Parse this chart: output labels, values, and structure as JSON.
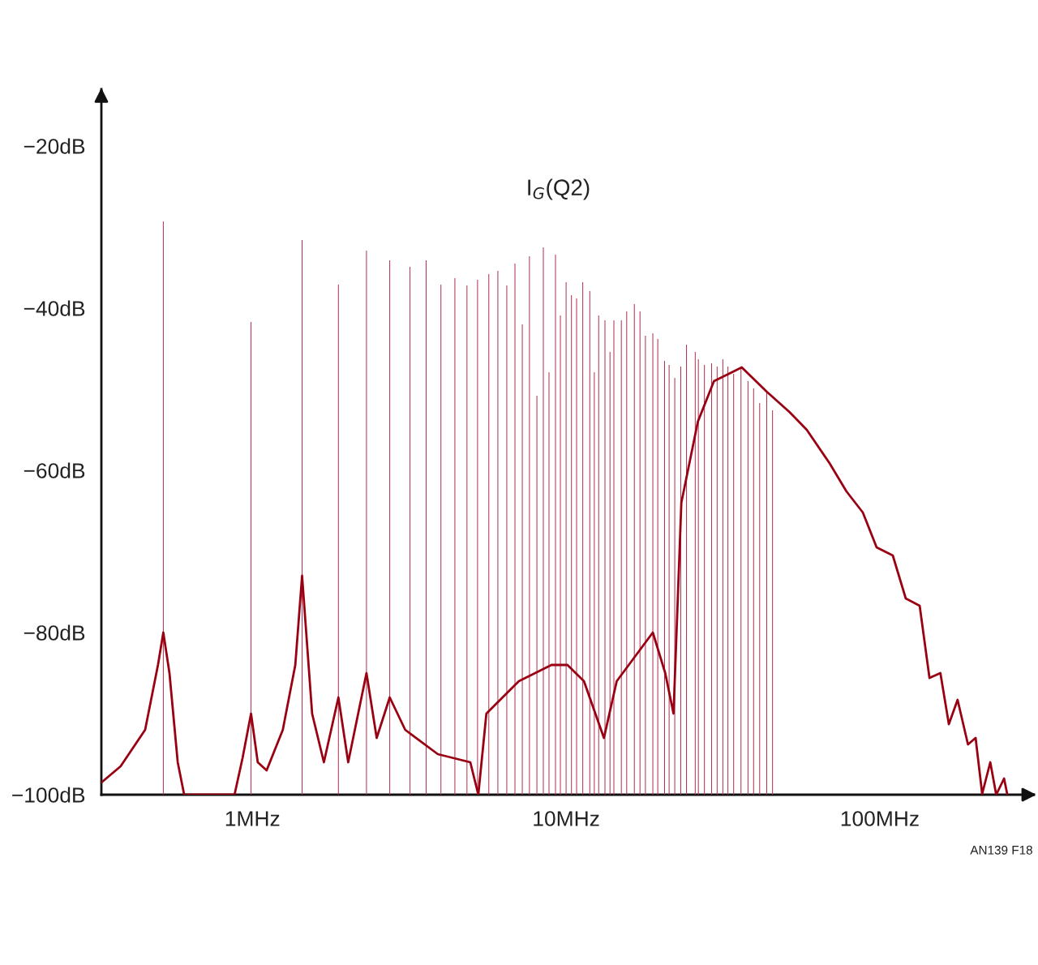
{
  "chart_data": {
    "type": "line",
    "line_style": "solid",
    "marker": "none",
    "title": "I$_{G}$(Q2)",
    "log": "x",
    "grid": false,
    "legend": false,
    "xlim": [
      0.33,
      310
    ],
    "ylim": [
      -100,
      -13
    ],
    "xticks": [
      {
        "value": 1,
        "label": "1MHz"
      },
      {
        "value": 10,
        "label": "10MHz"
      },
      {
        "value": 100,
        "label": "100MHz"
      }
    ],
    "yticks": [
      {
        "value": -20,
        "label": "−20dB"
      },
      {
        "value": -40,
        "label": "−40dB"
      },
      {
        "value": -60,
        "label": "−60dB"
      },
      {
        "value": -80,
        "label": "−80dB"
      },
      {
        "value": -100,
        "label": "−100dB"
      }
    ],
    "annotations": [
      "AN139 F18"
    ],
    "series": [
      {
        "color": "#990012",
        "x": [
          0.33,
          0.38,
          0.455,
          0.5,
          0.52,
          0.544,
          0.578,
          0.606,
          0.877,
          0.93,
          0.99,
          1.04,
          1.11,
          1.25,
          1.37,
          1.44,
          1.55,
          1.69,
          1.88,
          2.02,
          2.31,
          2.49,
          2.74,
          3.07,
          3.9,
          4.95,
          5.25,
          5.57,
          7.07,
          8.98,
          10.1,
          11.4,
          13.2,
          14.5,
          17.3,
          18.9,
          20.7,
          22.0,
          23.3,
          26.3,
          29.6,
          33.4,
          36.3,
          43.6,
          51.5,
          58.5,
          69.1,
          78.3,
          88.3,
          97.7,
          110,
          121,
          134,
          144,
          156,
          166,
          177,
          191,
          202,
          212,
          225,
          235,
          249,
          255
        ],
        "values": [
          -98.5,
          -96.5,
          -92,
          -84,
          -80,
          -85,
          -96,
          -100,
          -100,
          -95.5,
          -90,
          -96,
          -97,
          -92,
          -84,
          -73,
          -90,
          -96,
          -88,
          -96,
          -85,
          -93,
          -88,
          -92,
          -95,
          -96,
          -100,
          -90,
          -86,
          -84,
          -84,
          -86,
          -93,
          -86,
          -82,
          -80,
          -85,
          -90,
          -64,
          -54,
          -49,
          -48,
          -47.3,
          -50.3,
          -52.8,
          -55,
          -59.1,
          -62.6,
          -65.2,
          -69.5,
          -70.5,
          -75.8,
          -76.7,
          -85.6,
          -85,
          -91.3,
          -88.3,
          -93.8,
          -93,
          -99.9,
          -96,
          -100,
          -98,
          -100
        ]
      },
      {
        "type": "bar",
        "color": "#b0304f",
        "x": [
          0.52,
          0.99,
          1.44,
          1.88,
          2.31,
          2.74,
          3.18,
          3.58,
          3.99,
          4.42,
          4.83,
          5.22,
          5.67,
          6.06,
          6.47,
          6.87,
          7.25,
          7.64,
          8.07,
          8.46,
          8.82,
          9.25,
          9.59,
          10.0,
          10.4,
          10.8,
          11.3,
          11.9,
          12.3,
          12.7,
          13.3,
          13.8,
          14.2,
          15.0,
          15.6,
          16.5,
          17.2,
          17.9,
          18.9,
          19.6,
          20.6,
          21.3,
          22.2,
          23.2,
          24.2,
          25.8,
          26.4,
          27.6,
          29.1,
          30.3,
          31.6,
          32.8,
          34.2,
          36.1,
          38.0,
          39.6,
          41.4,
          43.6,
          45.5
        ],
        "base": [
          -100,
          -100,
          -100,
          -100,
          -100,
          -100,
          -100,
          -100,
          -100,
          -100,
          -100,
          -100,
          -100,
          -100,
          -100,
          -100,
          -100,
          -100,
          -100,
          -100,
          -100,
          -100,
          -100,
          -100,
          -100,
          -100,
          -100,
          -100,
          -100,
          -100,
          -100,
          -100,
          -100,
          -100,
          -100,
          -100,
          -100,
          -100,
          -100,
          -100,
          -100,
          -100,
          -100,
          -100,
          -100,
          -100,
          -100,
          -100,
          -100,
          -100,
          -100,
          -100,
          -100,
          -100,
          -100,
          -100,
          -100,
          -100,
          -100
        ],
        "values": [
          70.7,
          58.3,
          68.4,
          62.9,
          67.1,
          65.9,
          65.1,
          65.9,
          62.9,
          63.7,
          62.8,
          63.5,
          64.2,
          64.6,
          62.8,
          65.5,
          58,
          66.4,
          49.2,
          67.5,
          52.1,
          66.6,
          59.1,
          63.2,
          61.6,
          61.2,
          63.2,
          62.1,
          52.1,
          59.1,
          58.5,
          54.6,
          58.5,
          58.5,
          59.6,
          60.5,
          59.6,
          56.6,
          56.9,
          56.2,
          53.5,
          53,
          51.4,
          52.8,
          55.5,
          54.6,
          53.7,
          53,
          53.2,
          52.8,
          53.7,
          52.8,
          51.9,
          52.8,
          51,
          50.1,
          48.3,
          49.6,
          47.4
        ]
      }
    ]
  }
}
